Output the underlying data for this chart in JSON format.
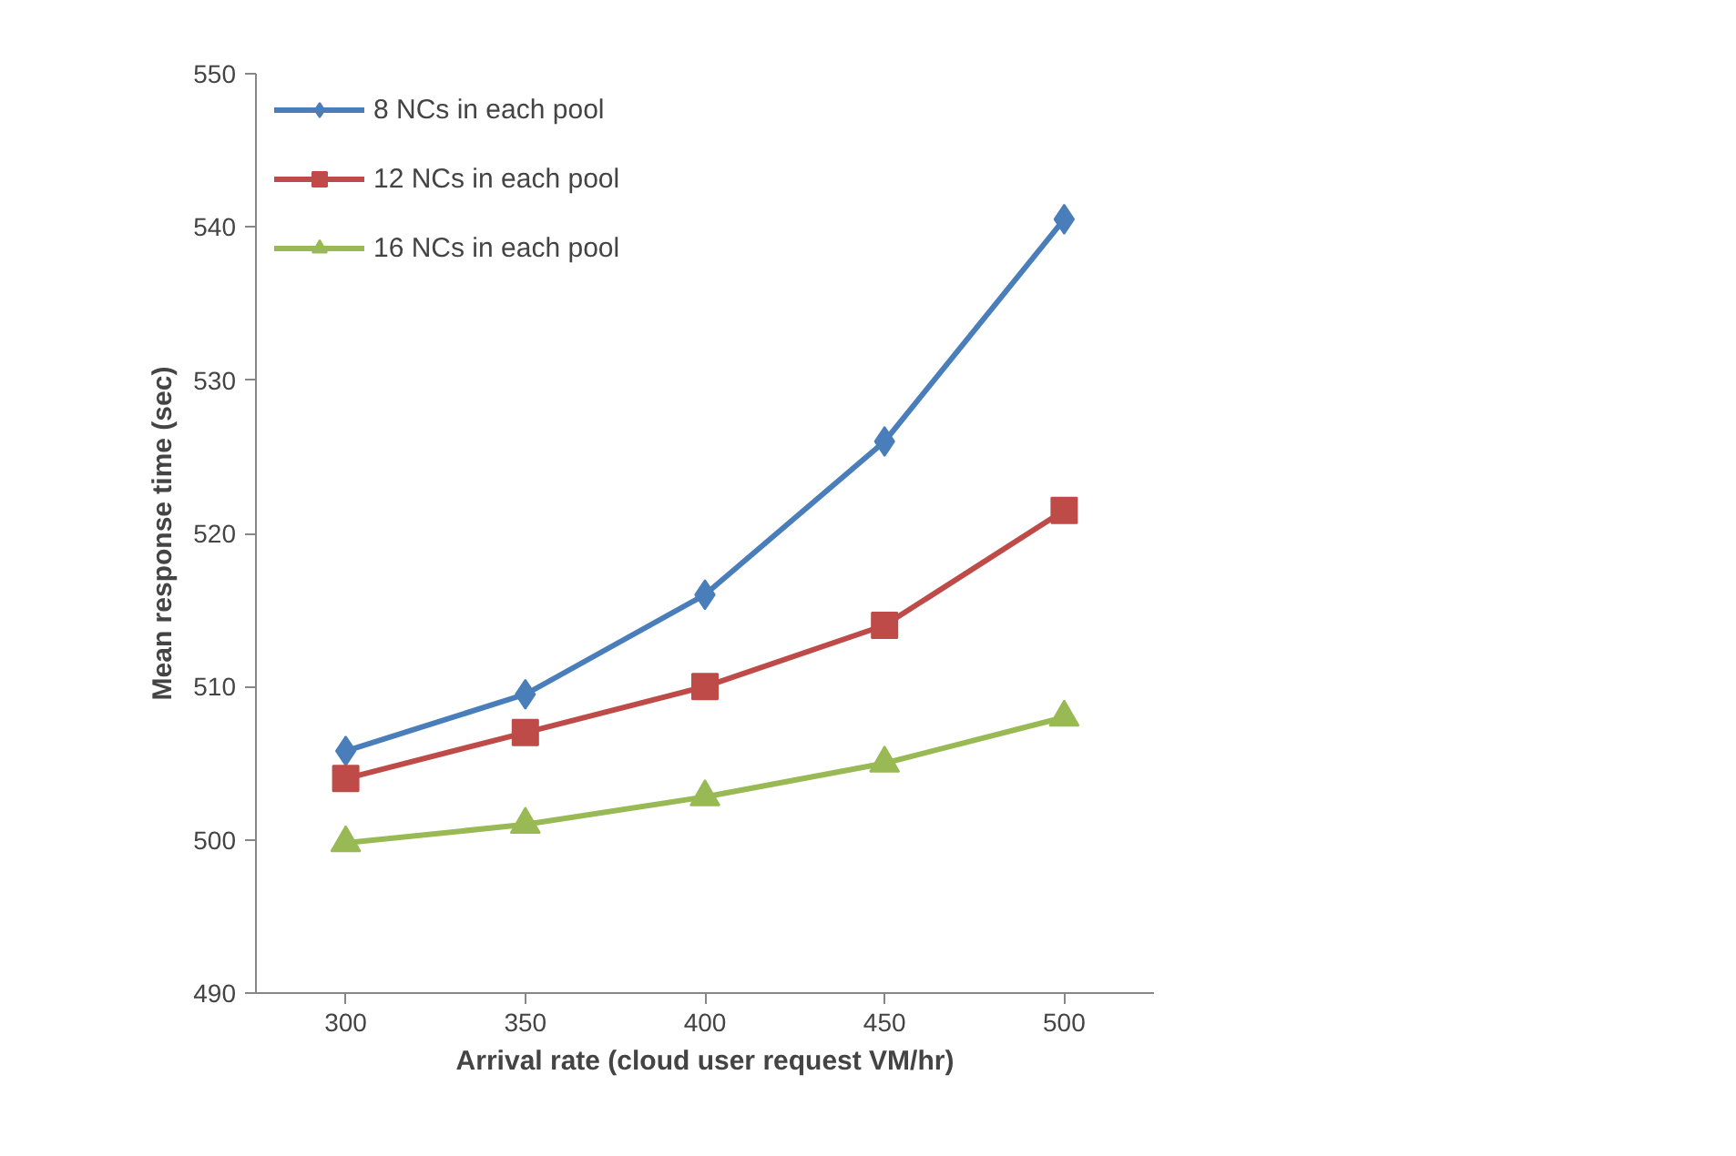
{
  "chart_data": {
    "type": "line",
    "xlabel": "Arrival rate (cloud user request VM/hr)",
    "ylabel": "Mean response time (sec)",
    "categories": [
      "300",
      "350",
      "400",
      "450",
      "500"
    ],
    "ylim": [
      490,
      550
    ],
    "yticks": [
      490,
      500,
      510,
      520,
      530,
      540,
      550
    ],
    "grid": false,
    "legend": "top left",
    "series": [
      {
        "name": "8 NCs in each pool",
        "color": "#4a7ebb",
        "marker": "diamond",
        "values": [
          505.8,
          509.5,
          516,
          526,
          540.5
        ]
      },
      {
        "name": "12 NCs in each pool",
        "color": "#be4b48",
        "marker": "square",
        "values": [
          504,
          507,
          510,
          514,
          521.5
        ]
      },
      {
        "name": "16 NCs in each pool",
        "color": "#98b954",
        "marker": "triangle",
        "values": [
          499.8,
          501,
          502.8,
          505,
          508
        ]
      }
    ]
  }
}
